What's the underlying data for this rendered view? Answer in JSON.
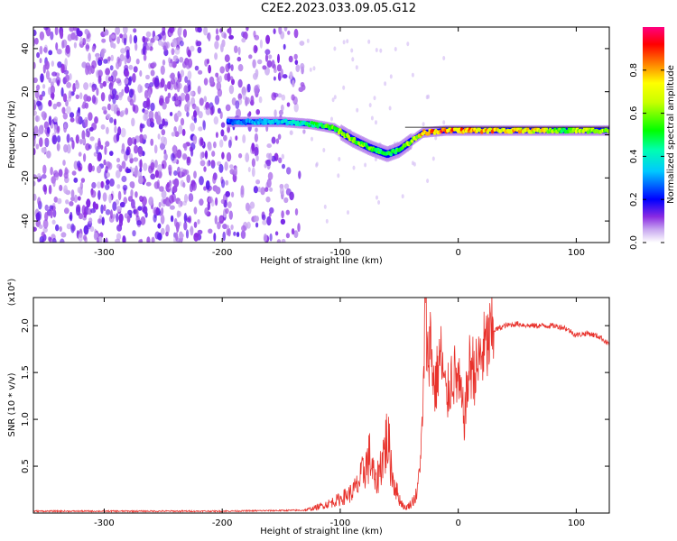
{
  "title": "C2E2.2023.033.09.05.G12",
  "chart_data": [
    {
      "type": "heatmap",
      "xlabel": "Height of straight line (km)",
      "ylabel": "Frequency (Hz)",
      "xlim": [
        -360,
        128
      ],
      "ylim": [
        -50,
        50
      ],
      "xticks": [
        -300,
        -200,
        -100,
        0,
        100
      ],
      "yticks": [
        -40,
        -20,
        0,
        20,
        40
      ],
      "colorbar": {
        "label": "Normalized spectral amplitude",
        "range": [
          0.0,
          1.0
        ],
        "ticks": [
          0.0,
          0.2,
          0.4,
          0.6,
          0.8
        ]
      },
      "noise_region_x": [
        -360,
        -130
      ],
      "signal_track": [
        {
          "x": -195,
          "y": 6,
          "amp": 0.25
        },
        {
          "x": -175,
          "y": 6,
          "amp": 0.3
        },
        {
          "x": -150,
          "y": 6,
          "amp": 0.35
        },
        {
          "x": -125,
          "y": 5,
          "amp": 0.45
        },
        {
          "x": -105,
          "y": 3,
          "amp": 0.55
        },
        {
          "x": -90,
          "y": -2,
          "amp": 0.6
        },
        {
          "x": -75,
          "y": -6,
          "amp": 0.55
        },
        {
          "x": -60,
          "y": -9,
          "amp": 0.5
        },
        {
          "x": -50,
          "y": -7,
          "amp": 0.5
        },
        {
          "x": -40,
          "y": -3,
          "amp": 0.6
        },
        {
          "x": -30,
          "y": 1,
          "amp": 0.75
        },
        {
          "x": -10,
          "y": 2,
          "amp": 0.85
        },
        {
          "x": 10,
          "y": 2,
          "amp": 0.8
        },
        {
          "x": 40,
          "y": 2,
          "amp": 0.75
        },
        {
          "x": 70,
          "y": 2,
          "amp": 0.7
        },
        {
          "x": 90,
          "y": 2,
          "amp": 0.5
        },
        {
          "x": 100,
          "y": 2,
          "amp": 0.65
        },
        {
          "x": 128,
          "y": 2,
          "amp": 0.6
        }
      ]
    },
    {
      "type": "line",
      "xlabel": "Height of straight line (km)",
      "ylabel": "SNR (10 * v/v)",
      "y_multiplier": "(x10⁴)",
      "xlim": [
        -360,
        128
      ],
      "ylim": [
        0,
        2.3
      ],
      "xticks": [
        -300,
        -200,
        -100,
        0,
        100
      ],
      "yticks": [
        0.5,
        1.0,
        1.5,
        2.0
      ],
      "ytick_labels": [
        "0.5",
        "1.0",
        "1.5",
        "2.0"
      ],
      "color": "#e8322c",
      "series": [
        {
          "x": [
            -360,
            -300,
            -200,
            -130,
            -120,
            -110,
            -100,
            -90,
            -85,
            -80,
            -75,
            -70,
            -65,
            -60,
            -55,
            -50,
            -45,
            -40,
            -35,
            -32,
            -30,
            -28,
            -26,
            -24,
            -20,
            -15,
            -10,
            -5,
            0,
            5,
            10,
            15,
            20,
            25,
            30,
            40,
            50,
            60,
            70,
            80,
            90,
            100,
            110,
            120,
            128
          ],
          "y": [
            0.02,
            0.02,
            0.02,
            0.03,
            0.06,
            0.1,
            0.15,
            0.22,
            0.3,
            0.45,
            0.6,
            0.3,
            0.55,
            0.8,
            0.35,
            0.15,
            0.05,
            0.1,
            0.2,
            0.6,
            1.0,
            2.3,
            1.6,
            1.9,
            1.3,
            1.7,
            1.2,
            1.5,
            1.4,
            1.0,
            1.6,
            1.5,
            1.7,
            1.8,
            1.95,
            2.0,
            2.02,
            2.0,
            2.0,
            2.0,
            1.98,
            1.9,
            1.92,
            1.88,
            1.8
          ]
        }
      ]
    }
  ]
}
